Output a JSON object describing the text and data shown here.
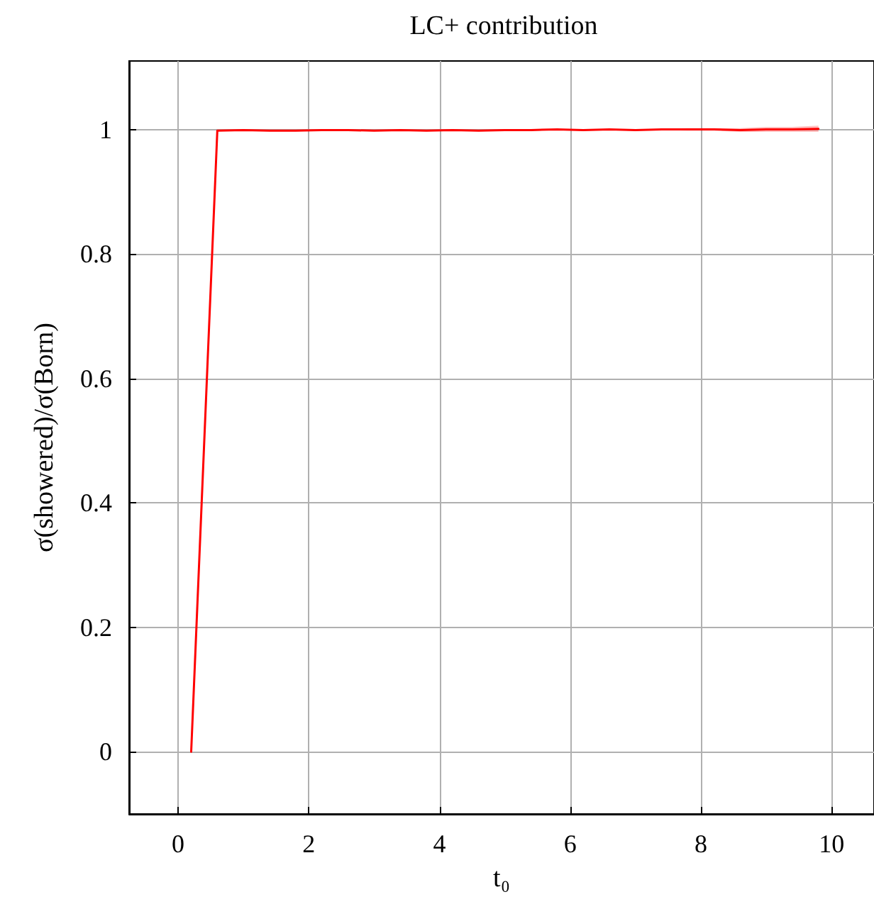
{
  "chart_data": {
    "type": "line",
    "title": "LC+ contribution",
    "xlabel": "t₀",
    "ylabel": "σ(showered)/σ(Born)",
    "xlim": [
      -0.75,
      10.65
    ],
    "xticks": [
      0,
      2,
      4,
      6,
      8,
      10
    ],
    "ylim": [
      -0.1,
      1.11
    ],
    "yticks": [
      0,
      0.2,
      0.4,
      0.6,
      0.8,
      1
    ],
    "grid": true,
    "marker": "none",
    "line_style": "solid",
    "series": [
      {
        "color": "#ff0000",
        "x": [
          0.2,
          0.6,
          1.0,
          1.4,
          1.8,
          2.2,
          2.6,
          3.0,
          3.4,
          3.8,
          4.2,
          4.6,
          5.0,
          5.4,
          5.8,
          6.2,
          6.6,
          7.0,
          7.4,
          7.8,
          8.2,
          8.6,
          9.0,
          9.4,
          9.8
        ],
        "values": [
          0,
          0.998,
          0.999,
          0.998,
          0.998,
          0.999,
          0.999,
          0.998,
          0.999,
          0.998,
          0.999,
          0.998,
          0.999,
          0.999,
          1.0,
          0.999,
          1.0,
          0.999,
          1.0,
          1.0,
          1.0,
          0.999,
          1.0,
          1.0,
          1.001
        ],
        "lower": [
          0,
          0.997,
          0.998,
          0.997,
          0.997,
          0.998,
          0.998,
          0.997,
          0.998,
          0.997,
          0.998,
          0.997,
          0.998,
          0.998,
          0.999,
          0.998,
          0.999,
          0.998,
          0.999,
          0.998,
          0.998,
          0.996,
          0.996,
          0.996,
          0.996
        ],
        "upper": [
          0,
          0.999,
          1.0,
          0.999,
          0.999,
          1.0,
          1.0,
          0.999,
          1.0,
          0.999,
          1.0,
          0.999,
          1.0,
          1.0,
          1.001,
          1.0,
          1.001,
          1.0,
          1.001,
          1.002,
          1.002,
          1.002,
          1.004,
          1.004,
          1.006
        ]
      }
    ]
  }
}
